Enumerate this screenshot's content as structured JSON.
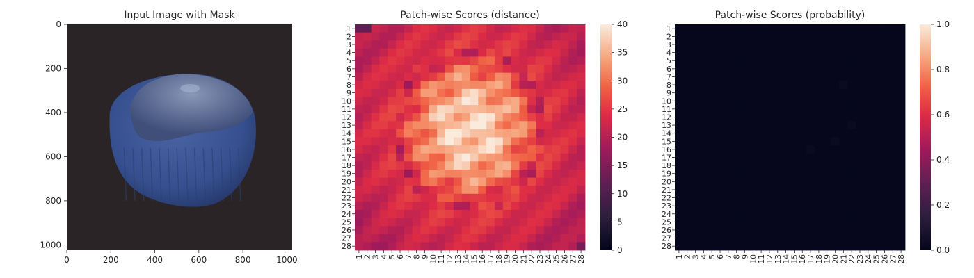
{
  "chart_data": [
    {
      "type": "image",
      "title": "Input Image with Mask",
      "xticks": [
        0,
        200,
        400,
        600,
        800,
        1000
      ],
      "yticks": [
        0,
        200,
        400,
        600,
        800,
        1000
      ],
      "xlim": [
        0,
        1024
      ],
      "ylim": [
        1024,
        0
      ],
      "description_colors": {
        "background": "#2b2426",
        "object": "#3c5691",
        "top": "#6b7a99"
      }
    },
    {
      "type": "heatmap",
      "title": "Patch-wise Scores (distance)",
      "rows": 28,
      "cols": 28,
      "tick_labels": [
        "1",
        "2",
        "3",
        "4",
        "5",
        "6",
        "7",
        "8",
        "9",
        "10",
        "11",
        "12",
        "13",
        "14",
        "15",
        "16",
        "17",
        "18",
        "19",
        "20",
        "21",
        "22",
        "23",
        "24",
        "25",
        "26",
        "27",
        "28"
      ],
      "colorbar": {
        "min": 0,
        "max": 40,
        "ticks": [
          0,
          5,
          10,
          15,
          20,
          25,
          30,
          35,
          40
        ]
      }
    },
    {
      "type": "heatmap",
      "title": "Patch-wise Scores (probability)",
      "rows": 28,
      "cols": 28,
      "tick_labels": [
        "1",
        "2",
        "3",
        "4",
        "5",
        "6",
        "7",
        "8",
        "9",
        "10",
        "11",
        "12",
        "13",
        "14",
        "15",
        "16",
        "17",
        "18",
        "19",
        "20",
        "21",
        "22",
        "23",
        "24",
        "25",
        "26",
        "27",
        "28"
      ],
      "colorbar": {
        "min": 0.0,
        "max": 1.0,
        "ticks": [
          "0.0",
          "0.2",
          "0.4",
          "0.6",
          "0.8",
          "1.0"
        ]
      }
    }
  ]
}
